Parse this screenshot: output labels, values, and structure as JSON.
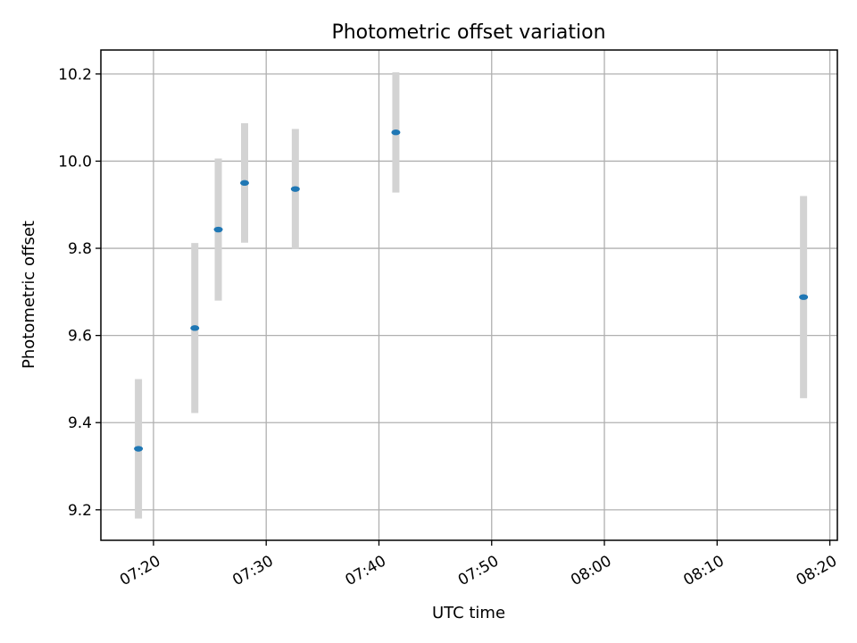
{
  "chart_data": {
    "type": "scatter",
    "title": "Photometric offset variation",
    "xlabel": "UTC time",
    "ylabel": "Photometric offset",
    "x_axis_type": "time",
    "xlim": [
      "07:15:20",
      "08:20:40"
    ],
    "ylim": [
      9.13,
      10.255
    ],
    "x_ticks": [
      "07:20",
      "07:30",
      "07:40",
      "07:50",
      "08:00",
      "08:10",
      "08:20"
    ],
    "y_ticks": [
      "9.2",
      "9.4",
      "9.6",
      "9.8",
      "10.0",
      "10.2"
    ],
    "grid": true,
    "series": [
      {
        "marker_color": "#1f77b4",
        "errorbar_color": "#d3d3d3",
        "points": [
          {
            "x": "07:18:40",
            "y": 9.34,
            "err": 0.16
          },
          {
            "x": "07:23:40",
            "y": 9.617,
            "err": 0.195
          },
          {
            "x": "07:25:45",
            "y": 9.843,
            "err": 0.163
          },
          {
            "x": "07:28:05",
            "y": 9.95,
            "err": 0.137
          },
          {
            "x": "07:32:35",
            "y": 9.936,
            "err": 0.138
          },
          {
            "x": "07:41:30",
            "y": 10.066,
            "err": 0.138
          },
          {
            "x": "08:17:40",
            "y": 9.688,
            "err": 0.232
          }
        ]
      }
    ]
  }
}
